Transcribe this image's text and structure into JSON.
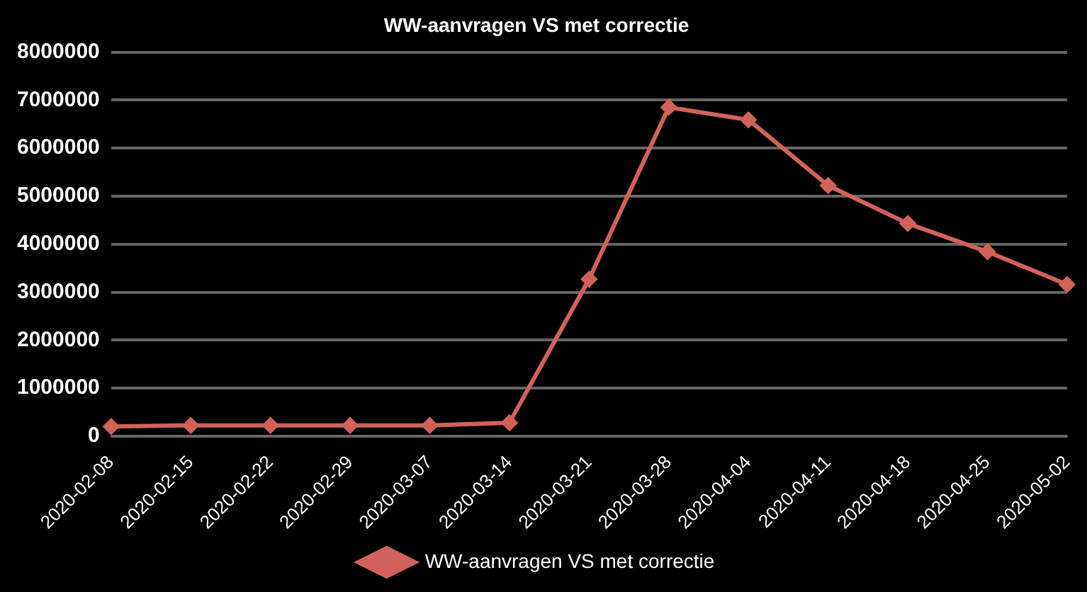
{
  "chart_data": {
    "type": "line",
    "title": "WW-aanvragen VS met correctie",
    "categories": [
      "2020-02-08",
      "2020-02-15",
      "2020-02-22",
      "2020-02-29",
      "2020-03-07",
      "2020-03-14",
      "2020-03-21",
      "2020-03-28",
      "2020-04-04",
      "2020-04-11",
      "2020-04-18",
      "2020-04-25",
      "2020-05-02"
    ],
    "series": [
      {
        "name": "WW-aanvragen VS met correctie",
        "color": "#d0625a",
        "values": [
          200000,
          225000,
          225000,
          225000,
          225000,
          280000,
          3270000,
          6850000,
          6590000,
          5220000,
          4430000,
          3840000,
          3160000
        ]
      }
    ],
    "ylim": [
      0,
      8000000
    ],
    "yticks": [
      0,
      1000000,
      2000000,
      3000000,
      4000000,
      5000000,
      6000000,
      7000000,
      8000000
    ],
    "grid": "y",
    "legend": "bottom",
    "marker": "diamond",
    "line_style": "solid"
  }
}
